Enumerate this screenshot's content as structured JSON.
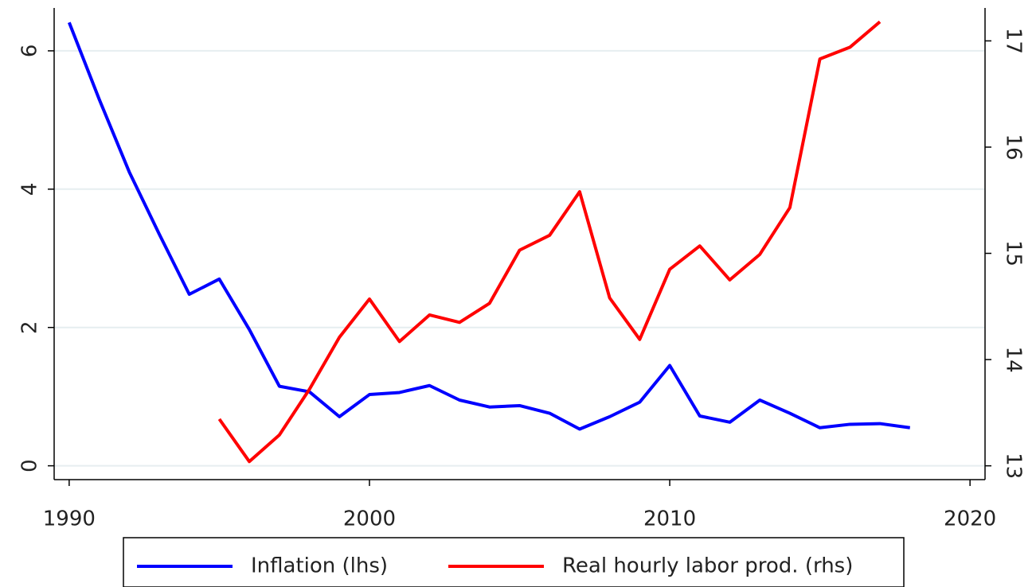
{
  "chart_data": {
    "type": "line",
    "x": [
      1990,
      1991,
      1992,
      1993,
      1994,
      1995,
      1996,
      1997,
      1998,
      1999,
      2000,
      2001,
      2002,
      2003,
      2004,
      2005,
      2006,
      2007,
      2008,
      2009,
      2010,
      2011,
      2012,
      2013,
      2014,
      2015,
      2016,
      2017,
      2018
    ],
    "series": [
      {
        "name": "Inflation (lhs)",
        "color": "#0000ff",
        "values": [
          6.41,
          5.3,
          4.25,
          3.35,
          2.48,
          2.7,
          1.97,
          1.15,
          1.07,
          0.71,
          1.03,
          1.06,
          1.16,
          0.95,
          0.85,
          0.87,
          0.76,
          0.53,
          0.71,
          0.92,
          1.45,
          0.72,
          0.63,
          0.95,
          0.76,
          0.55,
          0.6,
          0.61,
          0.55
        ]
      },
      {
        "name": "Real hourly labor prod. (rhs)",
        "color": "#ff0000",
        "axis": "y2",
        "values": [
          null,
          null,
          null,
          null,
          null,
          13.44,
          13.04,
          13.29,
          13.72,
          14.21,
          14.57,
          14.17,
          14.42,
          14.35,
          14.53,
          15.03,
          15.17,
          15.58,
          14.58,
          14.19,
          14.85,
          15.07,
          14.75,
          14.99,
          15.43,
          16.83,
          16.94,
          17.18,
          null
        ]
      }
    ],
    "xlim": [
      1989.5,
      2020.5
    ],
    "xticks": [
      1990,
      2000,
      2010,
      2020
    ],
    "ylim": [
      -0.2,
      6.62
    ],
    "yticks": [
      0,
      2,
      4,
      6
    ],
    "y2lim": [
      12.87,
      17.31
    ],
    "y2ticks": [
      13,
      14,
      15,
      16,
      17
    ],
    "grid": true,
    "legend": "bottom"
  }
}
